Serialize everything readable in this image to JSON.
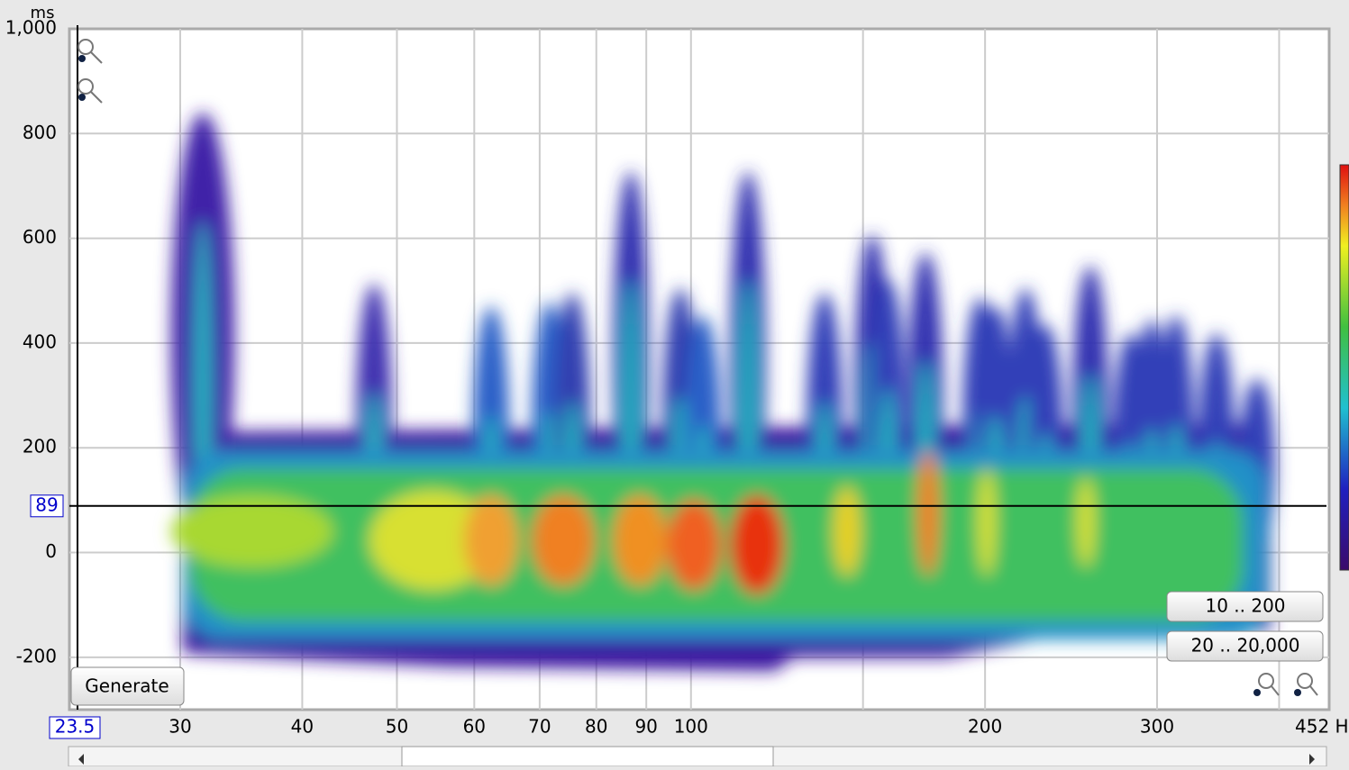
{
  "chart_data": {
    "type": "spectrogram",
    "y_unit": "ms",
    "xlim": [
      {
        "value": 23.5,
        "label": "23.5"
      },
      {
        "value": 452,
        "label": "452 H"
      }
    ],
    "ylim": [
      -300,
      1000
    ],
    "xscale": "log",
    "xticks": [
      30,
      40,
      50,
      60,
      70,
      80,
      90,
      100,
      {
        "value": 150,
        "label": null
      },
      200,
      300,
      {
        "value": 400,
        "label": null
      }
    ],
    "yticks": [
      -200,
      0,
      200,
      400,
      600,
      800,
      {
        "value": 1000,
        "label": "1,000"
      }
    ],
    "grid": true,
    "cursor_y": 89,
    "buttons": [
      "Generate",
      "10 .. 200",
      "20 .. 20,000"
    ]
  }
}
